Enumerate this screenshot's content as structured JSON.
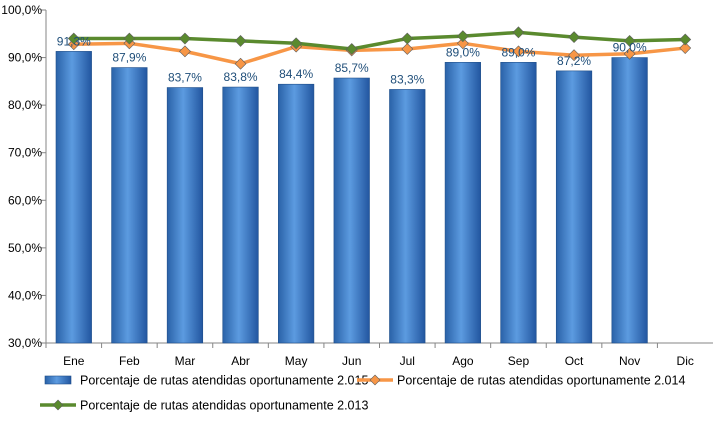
{
  "chart_data": {
    "type": "bar",
    "categories": [
      "Ene",
      "Feb",
      "Mar",
      "Abr",
      "May",
      "Jun",
      "Jul",
      "Ago",
      "Sep",
      "Oct",
      "Nov",
      "Dic"
    ],
    "ylim": [
      30,
      100
    ],
    "yticks": [
      "30,0%",
      "40,0%",
      "50,0%",
      "60,0%",
      "70,0%",
      "80,0%",
      "90,0%",
      "100,0%"
    ],
    "series": [
      {
        "name": "Porcentaje de rutas atendidas oportunamente 2.015",
        "kind": "bar",
        "color": "#2E75B6",
        "values": [
          91.3,
          87.9,
          83.7,
          83.8,
          84.4,
          85.7,
          83.3,
          89.0,
          89.0,
          87.2,
          90.0,
          null
        ],
        "labels": [
          "91,3%",
          "87,9%",
          "83,7%",
          "83,8%",
          "84,4%",
          "85,7%",
          "83,3%",
          "89,0%",
          "89,0%",
          "87,2%",
          "90,0%",
          ""
        ]
      },
      {
        "name": "Porcentaje de rutas atendidas oportunamente 2.014",
        "kind": "line",
        "color": "#F79646",
        "marker": "diamond",
        "values": [
          92.8,
          93.0,
          91.3,
          88.7,
          92.3,
          91.5,
          91.8,
          93.0,
          91.3,
          90.5,
          90.8,
          92.0
        ]
      },
      {
        "name": "Porcentaje de rutas atendidas oportunamente 2.013",
        "kind": "line",
        "color": "#5A8A2E",
        "marker": "diamond",
        "values": [
          94.0,
          94.0,
          94.0,
          93.5,
          93.0,
          91.8,
          94.0,
          94.5,
          95.3,
          94.3,
          93.5,
          93.8
        ]
      }
    ],
    "grid": false,
    "legend": "bottom"
  }
}
